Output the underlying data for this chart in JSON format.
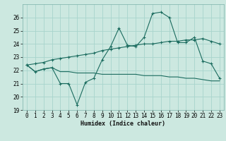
{
  "title": "",
  "xlabel": "Humidex (Indice chaleur)",
  "background_color": "#cce8e0",
  "grid_color": "#a8d4cc",
  "line_color": "#1a6b5e",
  "x": [
    0,
    1,
    2,
    3,
    4,
    5,
    6,
    7,
    8,
    9,
    10,
    11,
    12,
    13,
    14,
    15,
    16,
    17,
    18,
    19,
    20,
    21,
    22,
    23
  ],
  "y_main": [
    22.4,
    21.9,
    22.1,
    22.2,
    21.0,
    21.0,
    19.4,
    21.1,
    21.4,
    22.8,
    23.8,
    25.2,
    23.9,
    23.8,
    24.5,
    26.3,
    26.4,
    26.0,
    24.1,
    24.1,
    24.5,
    22.7,
    22.5,
    21.4
  ],
  "y_low": [
    22.4,
    21.9,
    22.1,
    22.2,
    21.9,
    21.9,
    21.8,
    21.8,
    21.8,
    21.7,
    21.7,
    21.7,
    21.7,
    21.7,
    21.6,
    21.6,
    21.6,
    21.5,
    21.5,
    21.4,
    21.4,
    21.3,
    21.2,
    21.2
  ],
  "y_trend": [
    22.4,
    22.5,
    22.6,
    22.8,
    22.9,
    23.0,
    23.1,
    23.2,
    23.3,
    23.5,
    23.6,
    23.7,
    23.8,
    23.9,
    24.0,
    24.0,
    24.1,
    24.2,
    24.2,
    24.3,
    24.3,
    24.4,
    24.2,
    24.0
  ],
  "ylim": [
    19,
    27
  ],
  "xlim": [
    -0.5,
    23.5
  ],
  "yticks": [
    19,
    20,
    21,
    22,
    23,
    24,
    25,
    26
  ],
  "xticks": [
    0,
    1,
    2,
    3,
    4,
    5,
    6,
    7,
    8,
    9,
    10,
    11,
    12,
    13,
    14,
    15,
    16,
    17,
    18,
    19,
    20,
    21,
    22,
    23
  ],
  "xlabel_fontsize": 6.0,
  "tick_fontsize": 5.5
}
